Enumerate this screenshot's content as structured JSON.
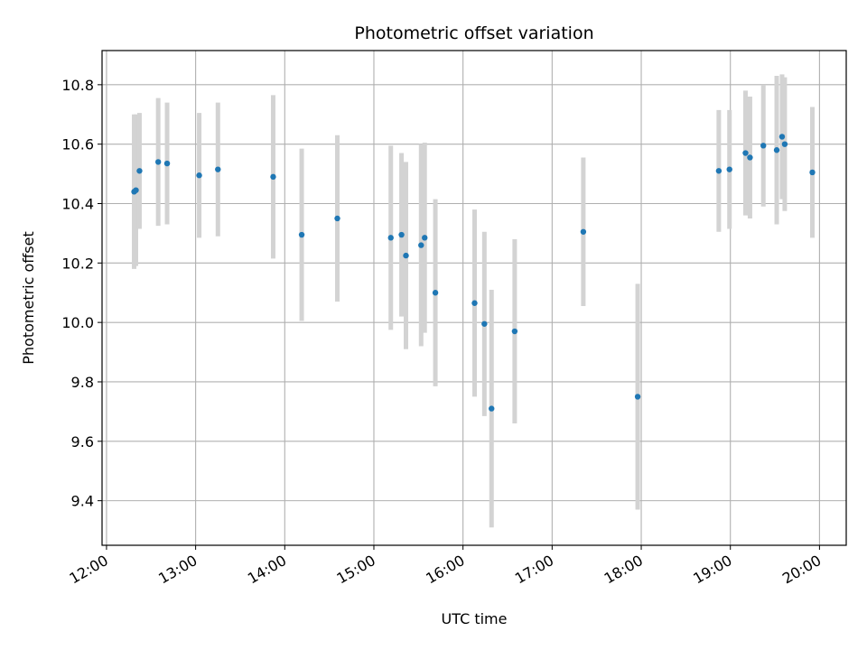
{
  "chart_data": {
    "type": "scatter",
    "title": "Photometric offset variation",
    "xlabel": "UTC time",
    "ylabel": "Photometric offset",
    "grid": true,
    "x_unit": "hours UTC",
    "xlim": [
      11.95,
      20.3
    ],
    "ylim": [
      9.25,
      10.915
    ],
    "x_ticks": [
      {
        "value": 12,
        "label": "12:00"
      },
      {
        "value": 13,
        "label": "13:00"
      },
      {
        "value": 14,
        "label": "14:00"
      },
      {
        "value": 15,
        "label": "15:00"
      },
      {
        "value": 16,
        "label": "16:00"
      },
      {
        "value": 17,
        "label": "17:00"
      },
      {
        "value": 18,
        "label": "18:00"
      },
      {
        "value": 19,
        "label": "19:00"
      },
      {
        "value": 20,
        "label": "20:00"
      }
    ],
    "y_ticks": [
      {
        "value": 9.4,
        "label": "9.4"
      },
      {
        "value": 9.6,
        "label": "9.6"
      },
      {
        "value": 9.8,
        "label": "9.8"
      },
      {
        "value": 10.0,
        "label": "10.0"
      },
      {
        "value": 10.2,
        "label": "10.2"
      },
      {
        "value": 10.4,
        "label": "10.4"
      },
      {
        "value": 10.6,
        "label": "10.6"
      },
      {
        "value": 10.8,
        "label": "10.8"
      }
    ],
    "colors": {
      "point": "#1f77b4",
      "errorbar": "#d3d3d3",
      "grid": "#b0b0b0"
    },
    "points": [
      {
        "x": 12.31,
        "y": 10.44,
        "err": 0.26
      },
      {
        "x": 12.33,
        "y": 10.445,
        "err": 0.255
      },
      {
        "x": 12.37,
        "y": 10.51,
        "err": 0.195
      },
      {
        "x": 12.58,
        "y": 10.54,
        "err": 0.215
      },
      {
        "x": 12.68,
        "y": 10.535,
        "err": 0.205
      },
      {
        "x": 13.04,
        "y": 10.495,
        "err": 0.21
      },
      {
        "x": 13.25,
        "y": 10.515,
        "err": 0.225
      },
      {
        "x": 13.87,
        "y": 10.49,
        "err": 0.275
      },
      {
        "x": 14.19,
        "y": 10.295,
        "err": 0.29
      },
      {
        "x": 14.59,
        "y": 10.35,
        "err": 0.28
      },
      {
        "x": 15.19,
        "y": 10.285,
        "err": 0.31
      },
      {
        "x": 15.31,
        "y": 10.295,
        "err": 0.275
      },
      {
        "x": 15.36,
        "y": 10.225,
        "err": 0.315
      },
      {
        "x": 15.53,
        "y": 10.26,
        "err": 0.34
      },
      {
        "x": 15.57,
        "y": 10.285,
        "err": 0.32
      },
      {
        "x": 15.69,
        "y": 10.1,
        "err": 0.315
      },
      {
        "x": 16.13,
        "y": 10.065,
        "err": 0.315
      },
      {
        "x": 16.24,
        "y": 9.995,
        "err": 0.31
      },
      {
        "x": 16.32,
        "y": 9.71,
        "err": 0.4
      },
      {
        "x": 16.58,
        "y": 9.97,
        "err": 0.31
      },
      {
        "x": 17.35,
        "y": 10.305,
        "err": 0.25
      },
      {
        "x": 17.96,
        "y": 9.75,
        "err": 0.38
      },
      {
        "x": 18.87,
        "y": 10.51,
        "err": 0.205
      },
      {
        "x": 18.99,
        "y": 10.515,
        "err": 0.2
      },
      {
        "x": 19.17,
        "y": 10.57,
        "err": 0.21
      },
      {
        "x": 19.22,
        "y": 10.555,
        "err": 0.205
      },
      {
        "x": 19.37,
        "y": 10.595,
        "err": 0.205
      },
      {
        "x": 19.52,
        "y": 10.58,
        "err": 0.25
      },
      {
        "x": 19.58,
        "y": 10.625,
        "err": 0.21
      },
      {
        "x": 19.61,
        "y": 10.6,
        "err": 0.225
      },
      {
        "x": 19.92,
        "y": 10.505,
        "err": 0.22
      }
    ]
  }
}
